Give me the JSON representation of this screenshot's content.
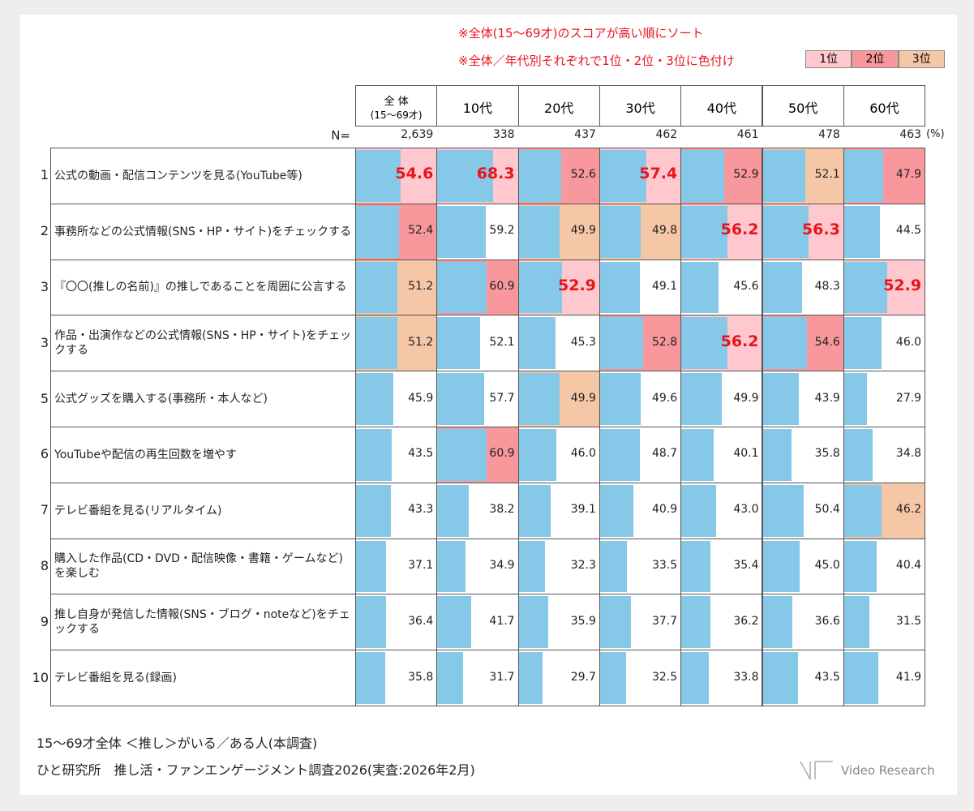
{
  "notes": [
    "※全体(15～69才)のスコアが高い順にソート",
    "※全体／年代別それぞれで1位・2位・3位に色付け"
  ],
  "legend": [
    {
      "label": "1位",
      "color": "#ffc7ce"
    },
    {
      "label": "2位",
      "color": "#f8979c"
    },
    {
      "label": "3位",
      "color": "#f5c7a6"
    }
  ],
  "bar_color": "#86c8e8",
  "highlight_text_color": "#e8141e",
  "xlim": [
    0,
    100
  ],
  "columns": [
    {
      "label": "全 体",
      "sub": "(15～69才)"
    },
    {
      "label": "10代"
    },
    {
      "label": "20代"
    },
    {
      "label": "30代"
    },
    {
      "label": "40代"
    },
    {
      "label": "50代"
    },
    {
      "label": "60代"
    }
  ],
  "n_label": "N=",
  "n_values": [
    {
      "value": 2639,
      "label": "2,639"
    },
    338,
    437,
    462,
    461,
    478,
    463
  ],
  "unit": "(%)",
  "rows": [
    {
      "rank": 1,
      "label": "公式の動画・配信コンテンツを見る(YouTube等)",
      "values": [
        54.6,
        68.3,
        52.6,
        57.4,
        52.9,
        52.1,
        47.9
      ],
      "ranks": [
        1,
        1,
        2,
        1,
        2,
        3,
        2
      ]
    },
    {
      "rank": 2,
      "label": "事務所などの公式情報(SNS・HP・サイト)をチェックする",
      "values": [
        52.4,
        59.2,
        49.9,
        49.8,
        56.2,
        56.3,
        44.5
      ],
      "ranks": [
        2,
        null,
        3,
        3,
        1,
        1,
        null
      ]
    },
    {
      "rank": 3,
      "label": "『〇〇(推しの名前)』の推しであることを周囲に公言する",
      "values": [
        51.2,
        60.9,
        52.9,
        49.1,
        45.6,
        48.3,
        52.9
      ],
      "ranks": [
        3,
        2,
        1,
        null,
        null,
        null,
        1
      ]
    },
    {
      "rank": 3,
      "label": "作品・出演作などの公式情報(SNS・HP・サイト)をチェックする",
      "values": [
        51.2,
        52.1,
        45.3,
        52.8,
        56.2,
        54.6,
        {
          "value": 46,
          "label": "46.0"
        }
      ],
      "ranks": [
        3,
        null,
        null,
        2,
        1,
        2,
        null
      ]
    },
    {
      "rank": 5,
      "label": "公式グッズを購入する(事務所・本人など)",
      "values": [
        45.9,
        57.7,
        49.9,
        49.6,
        49.9,
        43.9,
        27.9
      ],
      "ranks": [
        null,
        null,
        3,
        null,
        null,
        null,
        null
      ]
    },
    {
      "rank": 6,
      "label": "YouTubeや配信の再生回数を増やす",
      "values": [
        43.5,
        60.9,
        {
          "value": 46,
          "label": "46.0"
        },
        48.7,
        40.1,
        35.8,
        34.8
      ],
      "ranks": [
        null,
        2,
        null,
        null,
        null,
        null,
        null
      ]
    },
    {
      "rank": 7,
      "label": "テレビ番組を見る(リアルタイム)",
      "values": [
        43.3,
        38.2,
        39.1,
        40.9,
        {
          "value": 43,
          "label": "43.0"
        },
        50.4,
        46.2
      ],
      "ranks": [
        null,
        null,
        null,
        null,
        null,
        null,
        3
      ]
    },
    {
      "rank": 8,
      "label": "購入した作品(CD・DVD・配信映像・書籍・ゲームなど)を楽しむ",
      "values": [
        37.1,
        34.9,
        32.3,
        33.5,
        35.4,
        {
          "value": 45,
          "label": "45.0"
        },
        40.4
      ],
      "ranks": [
        null,
        null,
        null,
        null,
        null,
        null,
        null
      ]
    },
    {
      "rank": 9,
      "label": "推し自身が発信した情報(SNS・ブログ・noteなど)をチェックする",
      "values": [
        36.4,
        41.7,
        35.9,
        37.7,
        36.2,
        36.6,
        31.5
      ],
      "ranks": [
        null,
        null,
        null,
        null,
        null,
        null,
        null
      ]
    },
    {
      "rank": 10,
      "label": "テレビ番組を見る(録画)",
      "values": [
        35.8,
        31.7,
        29.7,
        32.5,
        33.8,
        43.5,
        41.9
      ],
      "ranks": [
        null,
        null,
        null,
        null,
        null,
        null,
        null
      ]
    }
  ],
  "footer": [
    "15～69才全体 ＜推し＞がいる／ある人(本調査)",
    "ひと研究所　推し活・ファンエンゲージメント調査2026(実査:2026年2月)"
  ],
  "logo": "Video Research"
}
